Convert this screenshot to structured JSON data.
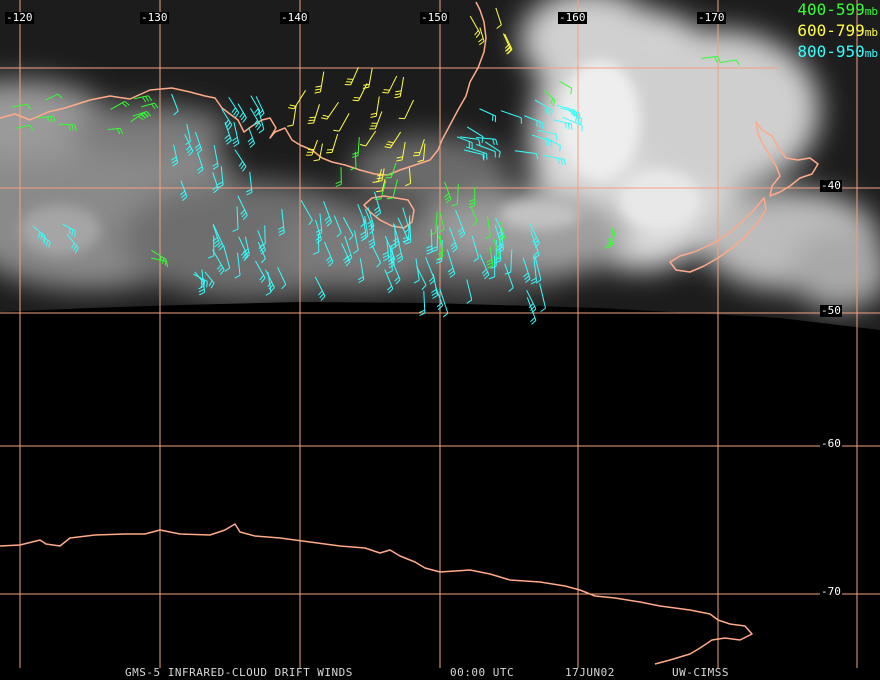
{
  "map": {
    "longitude_labels": [
      "-120",
      "-130",
      "-140",
      "-150",
      "-160",
      "-170"
    ],
    "latitude_labels": [
      "-40",
      "-50",
      "-60",
      "-70"
    ],
    "grid_color": "#f2a27f",
    "coastline_color": "#ffaa88"
  },
  "legend": {
    "items": [
      {
        "range": "400-599",
        "unit": "mb",
        "color": "#33ff33"
      },
      {
        "range": "600-799",
        "unit": "mb",
        "color": "#ffff44"
      },
      {
        "range": "800-950",
        "unit": "mb",
        "color": "#33ffff"
      }
    ]
  },
  "footer": {
    "product": "GMS-5 INFRARED-CLOUD DRIFT WINDS",
    "time": "00:00 UTC",
    "date": "17JUN02",
    "source": "UW-CIMSS"
  }
}
